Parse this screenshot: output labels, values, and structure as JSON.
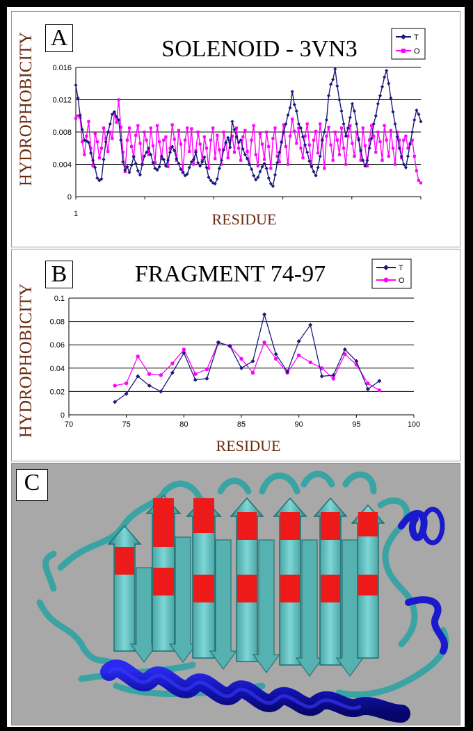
{
  "panels": {
    "a": {
      "letter": "A",
      "title": "SOLENOID  -  3VN3",
      "ylabel": "HYDROPHOBICITY",
      "xlabel": "RESIDUE",
      "x_tick_label": "1",
      "legend": [
        "T",
        "O"
      ]
    },
    "b": {
      "letter": "B",
      "title": "FRAGMENT 74-97",
      "ylabel": "HYDROPHOBICITY",
      "xlabel": "RESIDUE",
      "legend": [
        "T",
        "O"
      ]
    },
    "c": {
      "letter": "C"
    }
  },
  "colors": {
    "series_T": "#1a1a7a",
    "series_O": "#ff00ff",
    "helix": "#1010c0",
    "sheet": "#62c4c4",
    "hotspot": "#ee1a1a",
    "background_c": "#a8a8a8"
  },
  "chart_data": [
    {
      "type": "line",
      "title": "SOLENOID  -  3VN3",
      "xlabel": "RESIDUE",
      "ylabel": "HYDROPHOBICITY",
      "ylim": [
        0,
        0.016
      ],
      "yticks": [
        0,
        0.004,
        0.008,
        0.012,
        0.016
      ],
      "grid": "horizontal",
      "legend_position": "top-right",
      "series": [
        {
          "name": "T",
          "marker": "diamond",
          "values": [
            0.0138,
            0.0122,
            0.0101,
            0.0083,
            0.007,
            0.0069,
            0.0067,
            0.0054,
            0.0045,
            0.0036,
            0.0023,
            0.002,
            0.0022,
            0.0046,
            0.0068,
            0.008,
            0.009,
            0.0102,
            0.0105,
            0.0099,
            0.0095,
            0.007,
            0.0043,
            0.0033,
            0.0037,
            0.003,
            0.0039,
            0.0049,
            0.0041,
            0.0032,
            0.0027,
            0.004,
            0.005,
            0.0055,
            0.006,
            0.0052,
            0.0042,
            0.0035,
            0.0033,
            0.0037,
            0.005,
            0.0046,
            0.0038,
            0.0045,
            0.0055,
            0.0062,
            0.0057,
            0.0047,
            0.0041,
            0.0034,
            0.003,
            0.0026,
            0.0028,
            0.0036,
            0.0043,
            0.0046,
            0.0055,
            0.0042,
            0.0038,
            0.0043,
            0.0049,
            0.0036,
            0.0024,
            0.002,
            0.0017,
            0.0016,
            0.0022,
            0.0035,
            0.0045,
            0.0058,
            0.0067,
            0.0073,
            0.0061,
            0.0093,
            0.0083,
            0.0074,
            0.0067,
            0.007,
            0.0059,
            0.0052,
            0.0047,
            0.004,
            0.0034,
            0.0026,
            0.0021,
            0.0024,
            0.0031,
            0.0037,
            0.0041,
            0.0035,
            0.0023,
            0.0016,
            0.0013,
            0.0027,
            0.0042,
            0.0055,
            0.0067,
            0.008,
            0.009,
            0.0101,
            0.011,
            0.013,
            0.0114,
            0.0106,
            0.009,
            0.0085,
            0.0074,
            0.0064,
            0.0055,
            0.0044,
            0.0037,
            0.0031,
            0.0026,
            0.0036,
            0.005,
            0.007,
            0.008,
            0.0095,
            0.0125,
            0.0139,
            0.0145,
            0.0158,
            0.0137,
            0.012,
            0.0106,
            0.009,
            0.0075,
            0.0085,
            0.0098,
            0.0115,
            0.0106,
            0.009,
            0.007,
            0.0057,
            0.0045,
            0.0038,
            0.0045,
            0.006,
            0.0072,
            0.009,
            0.01,
            0.0115,
            0.0125,
            0.0136,
            0.0148,
            0.0156,
            0.014,
            0.0122,
            0.0105,
            0.009,
            0.0074,
            0.006,
            0.005,
            0.004,
            0.0036,
            0.005,
            0.0065,
            0.008,
            0.0095,
            0.0107,
            0.0102,
            0.0093
          ]
        },
        {
          "name": "O",
          "marker": "square",
          "values": [
            0.0097,
            0.01,
            0.0098,
            0.0068,
            0.0052,
            0.0075,
            0.0093,
            0.006,
            0.0038,
            0.0078,
            0.0068,
            0.0048,
            0.006,
            0.0085,
            0.0072,
            0.0056,
            0.008,
            0.0072,
            0.0104,
            0.0092,
            0.012,
            0.0086,
            0.0055,
            0.0031,
            0.007,
            0.0085,
            0.0062,
            0.005,
            0.0076,
            0.0088,
            0.0066,
            0.004,
            0.008,
            0.007,
            0.0052,
            0.0085,
            0.0063,
            0.0042,
            0.0088,
            0.0068,
            0.0047,
            0.007,
            0.0074,
            0.0037,
            0.006,
            0.0089,
            0.0071,
            0.0045,
            0.0082,
            0.0065,
            0.003,
            0.007,
            0.0085,
            0.0056,
            0.0084,
            0.004,
            0.0057,
            0.008,
            0.0065,
            0.0045,
            0.0074,
            0.006,
            0.0035,
            0.007,
            0.0085,
            0.0047,
            0.0076,
            0.0058,
            0.004,
            0.008,
            0.0066,
            0.0048,
            0.007,
            0.0075,
            0.0055,
            0.0085,
            0.006,
            0.0045,
            0.0074,
            0.0082,
            0.0056,
            0.004,
            0.007,
            0.0088,
            0.0052,
            0.0038,
            0.0078,
            0.0065,
            0.0046,
            0.008,
            0.0062,
            0.0035,
            0.0072,
            0.0085,
            0.005,
            0.0043,
            0.0068,
            0.0089,
            0.0062,
            0.004,
            0.0075,
            0.0096,
            0.0081,
            0.0066,
            0.0085,
            0.006,
            0.0048,
            0.0075,
            0.009,
            0.0064,
            0.0038,
            0.007,
            0.0081,
            0.0054,
            0.009,
            0.007,
            0.0035,
            0.0075,
            0.0086,
            0.0064,
            0.0045,
            0.008,
            0.007,
            0.0052,
            0.0085,
            0.006,
            0.004,
            0.0075,
            0.0088,
            0.0066,
            0.005,
            0.008,
            0.0072,
            0.0045,
            0.0085,
            0.0063,
            0.0038,
            0.007,
            0.0088,
            0.0075,
            0.0055,
            0.008,
            0.0068,
            0.0045,
            0.0088,
            0.007,
            0.005,
            0.0082,
            0.006,
            0.004,
            0.008,
            0.007,
            0.0048,
            0.007,
            0.0075,
            0.006,
            0.0066,
            0.007,
            0.005,
            0.0032,
            0.002,
            0.0017
          ]
        }
      ]
    },
    {
      "type": "line",
      "title": "FRAGMENT 74-97",
      "xlabel": "RESIDUE",
      "ylabel": "HYDROPHOBICITY",
      "xlim": [
        70,
        100
      ],
      "xticks": [
        70,
        75,
        80,
        85,
        90,
        95,
        100
      ],
      "ylim": [
        0,
        0.1
      ],
      "yticks": [
        0,
        0.02,
        0.04,
        0.06,
        0.08,
        0.1
      ],
      "grid": "horizontal",
      "legend_position": "top-right",
      "x": [
        74,
        75,
        76,
        77,
        78,
        79,
        80,
        81,
        82,
        83,
        84,
        85,
        86,
        87,
        88,
        89,
        90,
        91,
        92,
        93,
        94,
        95,
        96,
        97
      ],
      "series": [
        {
          "name": "T",
          "marker": "diamond",
          "values": [
            0.011,
            0.018,
            0.033,
            0.025,
            0.02,
            0.036,
            0.053,
            0.03,
            0.031,
            0.062,
            0.059,
            0.04,
            0.046,
            0.086,
            0.052,
            0.037,
            0.063,
            0.077,
            0.033,
            0.034,
            0.056,
            0.046,
            0.022,
            0.029
          ]
        },
        {
          "name": "O",
          "marker": "circle",
          "values": [
            0.025,
            0.027,
            0.05,
            0.035,
            0.034,
            0.044,
            0.056,
            0.035,
            0.039,
            0.062,
            0.059,
            0.048,
            0.036,
            0.062,
            0.048,
            0.036,
            0.051,
            0.045,
            0.04,
            0.031,
            0.052,
            0.043,
            0.027,
            0.021
          ]
        }
      ]
    }
  ]
}
